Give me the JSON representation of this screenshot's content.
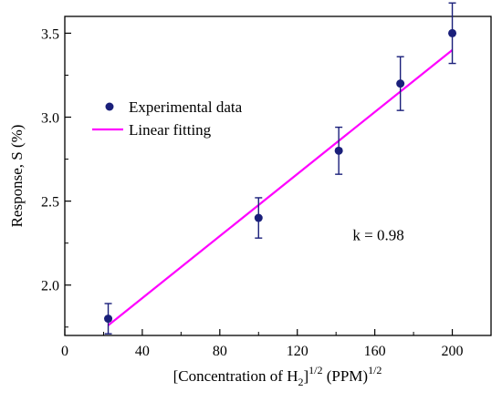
{
  "chart_data": {
    "type": "scatter",
    "xlabel_parts": [
      "[Concentration of H",
      "2",
      "]",
      "1/2",
      " (PPM)",
      "1/2"
    ],
    "ylabel": "Response, S (%)",
    "xlim": [
      0,
      220
    ],
    "ylim": [
      1.7,
      3.6
    ],
    "x_ticks": [
      0,
      40,
      80,
      120,
      160,
      200
    ],
    "y_ticks": [
      2.0,
      2.5,
      3.0,
      3.5
    ],
    "x_tick_labels": [
      "0",
      "40",
      "80",
      "120",
      "160",
      "200"
    ],
    "y_tick_labels": [
      "2.0",
      "2.5",
      "3.0",
      "3.5"
    ],
    "grid": false,
    "legend_position": "upper-left",
    "series": [
      {
        "name": "Experimental data",
        "kind": "points_with_error_bars",
        "color": "#1a1f7a",
        "x": [
          22.4,
          100,
          141.4,
          173.2,
          200
        ],
        "y": [
          1.8,
          2.4,
          2.8,
          3.2,
          3.5
        ],
        "yerr": [
          0.09,
          0.12,
          0.14,
          0.16,
          0.18
        ]
      },
      {
        "name": "Linear fitting",
        "kind": "line",
        "color": "#ff00ff",
        "x": [
          22.4,
          200
        ],
        "y": [
          1.76,
          3.4
        ]
      }
    ],
    "annotations": [
      {
        "text": "k = 0.98",
        "x": 150,
        "y": 2.3
      }
    ]
  }
}
